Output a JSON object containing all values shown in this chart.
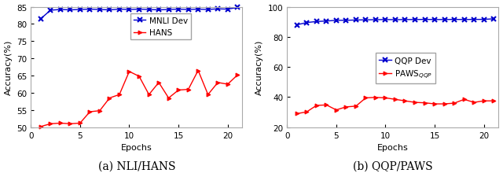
{
  "nli": {
    "epochs": [
      1,
      2,
      3,
      4,
      5,
      6,
      7,
      8,
      9,
      10,
      11,
      12,
      13,
      14,
      15,
      16,
      17,
      18,
      19,
      20,
      21
    ],
    "mnli_dev": [
      81.5,
      84.0,
      84.2,
      84.1,
      84.2,
      84.3,
      84.2,
      84.1,
      84.3,
      84.2,
      84.3,
      84.2,
      84.1,
      84.2,
      84.3,
      84.2,
      84.3,
      84.2,
      84.4,
      84.3,
      84.8
    ],
    "hans": [
      50.2,
      51.0,
      51.2,
      51.0,
      51.2,
      54.5,
      54.8,
      58.5,
      59.5,
      66.2,
      64.8,
      59.5,
      63.0,
      58.5,
      60.8,
      61.0,
      66.5,
      59.5,
      63.0,
      62.5,
      65.2
    ],
    "caption": "(a) NLI/HANS",
    "ylabel": "Accuracy(%)",
    "xlabel": "Epochs",
    "ylim": [
      50,
      85
    ],
    "yticks": [
      50,
      55,
      60,
      65,
      70,
      75,
      80,
      85
    ],
    "xticks": [
      0,
      5,
      10,
      15,
      20
    ],
    "legend1": "MNLI Dev",
    "legend2": "HANS"
  },
  "qqp": {
    "epochs": [
      1,
      2,
      3,
      4,
      5,
      6,
      7,
      8,
      9,
      10,
      11,
      12,
      13,
      14,
      15,
      16,
      17,
      18,
      19,
      20,
      21
    ],
    "qqp_dev": [
      88.0,
      89.5,
      90.2,
      90.5,
      91.0,
      91.0,
      91.2,
      91.3,
      91.4,
      91.5,
      91.4,
      91.5,
      91.5,
      91.6,
      91.5,
      91.5,
      91.6,
      91.5,
      91.6,
      91.6,
      92.0
    ],
    "paws": [
      29.0,
      30.2,
      34.5,
      34.8,
      31.5,
      33.5,
      34.0,
      39.5,
      39.8,
      39.5,
      38.5,
      37.5,
      36.5,
      36.2,
      35.5,
      35.5,
      36.0,
      38.5,
      36.5,
      37.5,
      37.5
    ],
    "caption": "(b) QQP/PAWS",
    "ylabel": "Accuracy(%)",
    "xlabel": "Epochs",
    "ylim": [
      20,
      100
    ],
    "yticks": [
      20,
      40,
      60,
      80,
      100
    ],
    "xticks": [
      0,
      5,
      10,
      15,
      20
    ],
    "legend1": "QQP Dev",
    "legend2": "PAWS$_{QQP}$"
  },
  "blue_color": "#0000CD",
  "red_color": "#FF0000",
  "caption_fontsize": 10,
  "label_fontsize": 8,
  "tick_fontsize": 7.5,
  "legend_fontsize": 7.5,
  "linewidth": 1.0,
  "background_color": "#ffffff",
  "spine_color": "#aaaaaa"
}
